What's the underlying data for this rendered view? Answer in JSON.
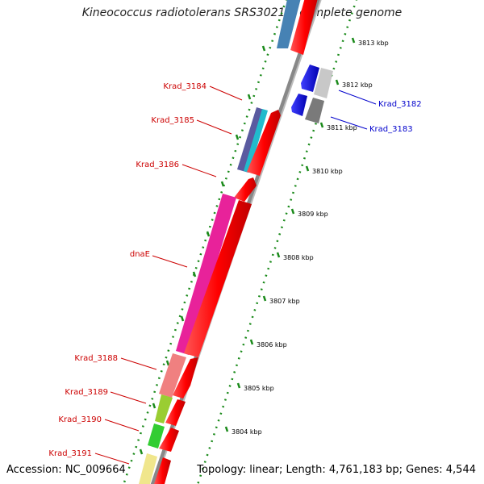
{
  "title": "Kineococcus radiotolerans SRS30216, complete genome",
  "accession": "Accession: NC_009664",
  "stats": "Topology: linear; Length: 4,761,183 bp; Genes: 4,544",
  "ticks": [
    "3813 kbp",
    "3812 kbp",
    "3811 kbp",
    "3810 kbp",
    "3809 kbp",
    "3808 kbp",
    "3807 kbp",
    "3806 kbp",
    "3805 kbp",
    "3804 kbp"
  ],
  "genes": [
    {
      "name": "Krad_3182",
      "color": "#0000cc"
    },
    {
      "name": "Krad_3183",
      "color": "#0000cc"
    },
    {
      "name": "Krad_3184",
      "color": "#cc0000"
    },
    {
      "name": "Krad_3185",
      "color": "#cc0000"
    },
    {
      "name": "Krad_3186",
      "color": "#cc0000"
    },
    {
      "name": "dnaE",
      "color": "#cc0000"
    },
    {
      "name": "Krad_3188",
      "color": "#cc0000"
    },
    {
      "name": "Krad_3189",
      "color": "#cc0000"
    },
    {
      "name": "Krad_3190",
      "color": "#cc0000"
    },
    {
      "name": "Krad_3191",
      "color": "#cc0000"
    }
  ]
}
